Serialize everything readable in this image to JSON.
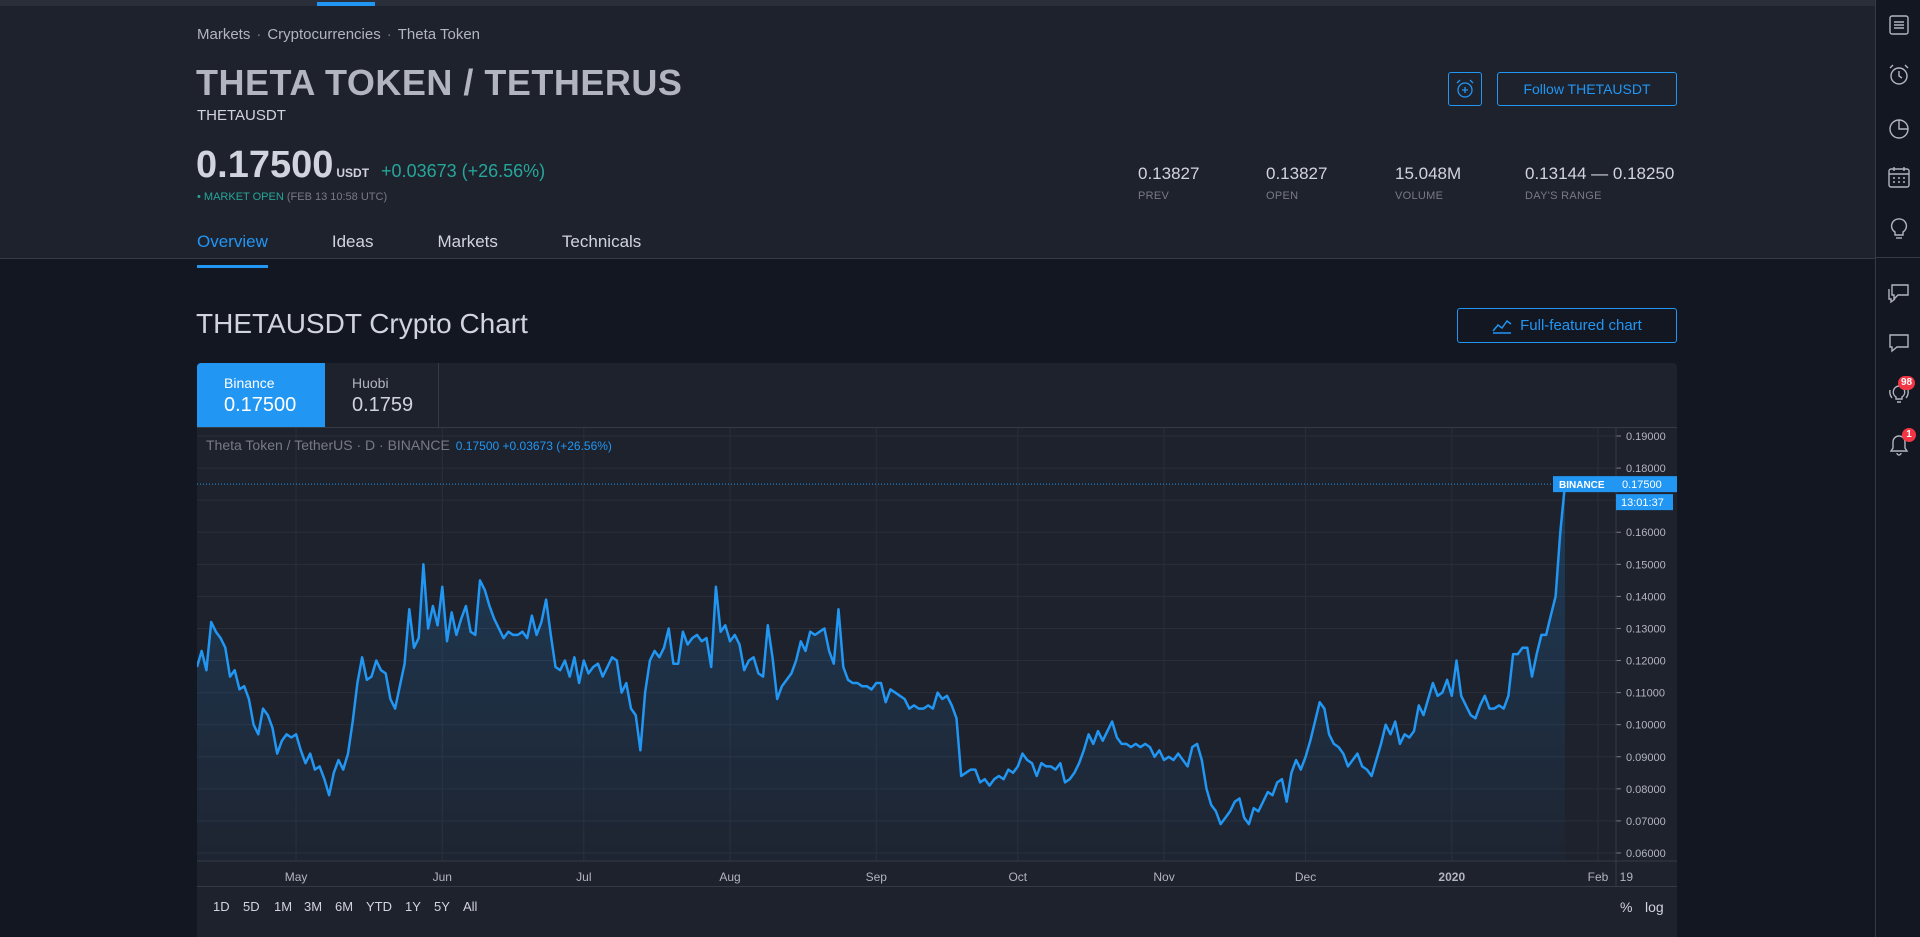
{
  "breadcrumb": {
    "items": [
      "Markets",
      "Cryptocurrencies",
      "Theta Token"
    ],
    "separator": "·"
  },
  "header": {
    "title": "THETA TOKEN / TETHERUS",
    "ticker": "THETAUSDT",
    "price": "0.17500",
    "price_unit": "USDT",
    "change": "+0.03673 (+26.56%)",
    "market_status": "• MARKET OPEN",
    "market_time": "(FEB 13 10:58 UTC)",
    "follow_label": "Follow THETAUSDT"
  },
  "stats": {
    "prev": {
      "value": "0.13827",
      "label": "PREV"
    },
    "open": {
      "value": "0.13827",
      "label": "OPEN"
    },
    "volume": {
      "value": "15.048M",
      "label": "VOLUME"
    },
    "range": {
      "value": "0.13144 — 0.18250",
      "label": "DAY'S RANGE"
    }
  },
  "tabs": [
    "Overview",
    "Ideas",
    "Markets",
    "Technicals"
  ],
  "section": {
    "title": "THETAUSDT Crypto Chart",
    "full_chart_label": "Full-featured chart"
  },
  "exchanges": [
    {
      "name": "Binance",
      "price": "0.17500"
    },
    {
      "name": "Huobi",
      "price": "0.1759"
    }
  ],
  "chart_legend": {
    "symbol": "Theta Token / TetherUS · D · BINANCE",
    "values": "0.17500 +0.03673 (+26.56%)"
  },
  "price_tag": {
    "exchange": "BINANCE",
    "price": "0.17500",
    "countdown": "13:01:37"
  },
  "ranges": [
    "1D",
    "5D",
    "1M",
    "3M",
    "6M",
    "YTD",
    "1Y",
    "5Y",
    "All"
  ],
  "bottom_options": {
    "percent": "%",
    "log": "log"
  },
  "sidebar_badges": {
    "ideas_stream": "98",
    "notifications": "1"
  },
  "colors": {
    "accent": "#2196f3",
    "positive": "#26a69a",
    "background": "#131722",
    "panel": "#1e222d",
    "badge": "#f23645"
  },
  "icons": [
    "watchlist-icon",
    "alarm-clock-icon",
    "data-window-icon",
    "calendar-icon",
    "idea-bulb-icon",
    "chats-icon",
    "chat-icon",
    "ideas-stream-icon",
    "notifications-icon"
  ],
  "chart_data": {
    "type": "area",
    "series": [
      {
        "name": "THETAUSDT",
        "x_start": "Apr 10",
        "interval": "1D",
        "values": [
          0.118,
          0.123,
          0.117,
          0.132,
          0.129,
          0.127,
          0.124,
          0.115,
          0.117,
          0.111,
          0.112,
          0.108,
          0.1,
          0.097,
          0.105,
          0.103,
          0.099,
          0.091,
          0.095,
          0.097,
          0.096,
          0.097,
          0.092,
          0.088,
          0.091,
          0.086,
          0.087,
          0.083,
          0.078,
          0.085,
          0.089,
          0.086,
          0.091,
          0.101,
          0.113,
          0.121,
          0.114,
          0.115,
          0.12,
          0.117,
          0.116,
          0.108,
          0.105,
          0.112,
          0.119,
          0.136,
          0.124,
          0.127,
          0.15,
          0.13,
          0.137,
          0.131,
          0.143,
          0.126,
          0.135,
          0.128,
          0.133,
          0.137,
          0.129,
          0.128,
          0.145,
          0.142,
          0.137,
          0.133,
          0.13,
          0.127,
          0.129,
          0.128,
          0.128,
          0.129,
          0.127,
          0.134,
          0.128,
          0.132,
          0.139,
          0.128,
          0.118,
          0.117,
          0.12,
          0.115,
          0.121,
          0.113,
          0.12,
          0.116,
          0.118,
          0.119,
          0.115,
          0.118,
          0.121,
          0.12,
          0.11,
          0.113,
          0.105,
          0.103,
          0.092,
          0.11,
          0.12,
          0.123,
          0.121,
          0.124,
          0.13,
          0.119,
          0.119,
          0.129,
          0.125,
          0.127,
          0.128,
          0.126,
          0.127,
          0.118,
          0.143,
          0.129,
          0.131,
          0.126,
          0.128,
          0.125,
          0.117,
          0.12,
          0.121,
          0.116,
          0.115,
          0.131,
          0.121,
          0.108,
          0.112,
          0.114,
          0.116,
          0.12,
          0.126,
          0.123,
          0.129,
          0.128,
          0.129,
          0.13,
          0.123,
          0.119,
          0.136,
          0.118,
          0.114,
          0.113,
          0.113,
          0.112,
          0.112,
          0.111,
          0.113,
          0.113,
          0.107,
          0.111,
          0.11,
          0.109,
          0.108,
          0.105,
          0.106,
          0.105,
          0.105,
          0.106,
          0.105,
          0.11,
          0.108,
          0.109,
          0.106,
          0.102,
          0.084,
          0.085,
          0.086,
          0.086,
          0.082,
          0.083,
          0.081,
          0.083,
          0.084,
          0.083,
          0.086,
          0.085,
          0.087,
          0.091,
          0.089,
          0.088,
          0.084,
          0.088,
          0.087,
          0.087,
          0.086,
          0.088,
          0.082,
          0.083,
          0.085,
          0.088,
          0.092,
          0.097,
          0.094,
          0.098,
          0.095,
          0.098,
          0.101,
          0.096,
          0.094,
          0.094,
          0.093,
          0.094,
          0.093,
          0.094,
          0.093,
          0.09,
          0.092,
          0.089,
          0.09,
          0.089,
          0.091,
          0.089,
          0.087,
          0.093,
          0.094,
          0.089,
          0.08,
          0.075,
          0.073,
          0.069,
          0.071,
          0.073,
          0.076,
          0.077,
          0.071,
          0.069,
          0.074,
          0.073,
          0.076,
          0.079,
          0.078,
          0.082,
          0.083,
          0.076,
          0.085,
          0.089,
          0.086,
          0.09,
          0.095,
          0.101,
          0.107,
          0.105,
          0.097,
          0.094,
          0.093,
          0.091,
          0.087,
          0.089,
          0.091,
          0.087,
          0.086,
          0.084,
          0.089,
          0.094,
          0.1,
          0.097,
          0.101,
          0.094,
          0.097,
          0.096,
          0.098,
          0.106,
          0.103,
          0.108,
          0.113,
          0.109,
          0.11,
          0.114,
          0.109,
          0.12,
          0.109,
          0.106,
          0.103,
          0.102,
          0.106,
          0.109,
          0.105,
          0.105,
          0.106,
          0.105,
          0.109,
          0.122,
          0.122,
          0.124,
          0.124,
          0.115,
          0.122,
          0.128,
          0.128,
          0.134,
          0.14,
          0.16,
          0.175
        ]
      }
    ],
    "x_ticks": [
      "May",
      "Jun",
      "Jul",
      "Aug",
      "Sep",
      "Oct",
      "Nov",
      "Dec",
      "2020",
      "Feb",
      "19"
    ],
    "y_ticks": [
      "0.19000",
      "0.18000",
      "0.17000",
      "0.16000",
      "0.15000",
      "0.14000",
      "0.13000",
      "0.12000",
      "0.11000",
      "0.10000",
      "0.09000",
      "0.08000",
      "0.07000",
      "0.06000"
    ],
    "ylim": [
      0.0575,
      0.1925
    ],
    "last_price_line": 0.175,
    "grid": true,
    "legend": "top-left"
  }
}
